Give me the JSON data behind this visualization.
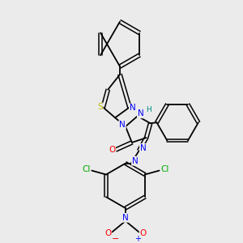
{
  "background_color": "#ebebeb",
  "bond_color": "#000000",
  "atom_colors": {
    "N": "#0000ff",
    "O": "#ff0000",
    "S": "#bbbb00",
    "Cl": "#00aa00",
    "H": "#008888",
    "C": "#000000"
  },
  "figsize": [
    3.0,
    3.0
  ],
  "dpi": 100
}
